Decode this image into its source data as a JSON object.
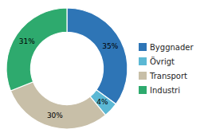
{
  "chart_data": {
    "type": "donut",
    "categories": [
      "Byggnader",
      "Övrigt",
      "Transport",
      "Industri"
    ],
    "values": [
      35,
      4,
      30,
      31
    ],
    "value_labels": [
      "35%",
      "4%",
      "30%",
      "31%"
    ],
    "colors": [
      "#2E75B6",
      "#5BB8D4",
      "#C8BFA8",
      "#2EAA6E"
    ],
    "data_labels": true,
    "legend": "right"
  }
}
